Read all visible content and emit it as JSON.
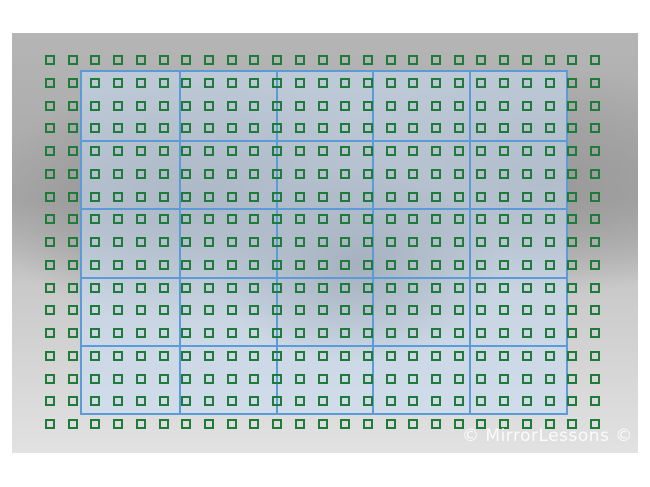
{
  "af_grid": {
    "columns": 25,
    "rows": 17,
    "point_color": "#1e7b3a"
  },
  "zones": {
    "columns": 5,
    "rows": 5,
    "color": "#5b9bd8"
  },
  "watermark": "© MirrorLessons ©"
}
